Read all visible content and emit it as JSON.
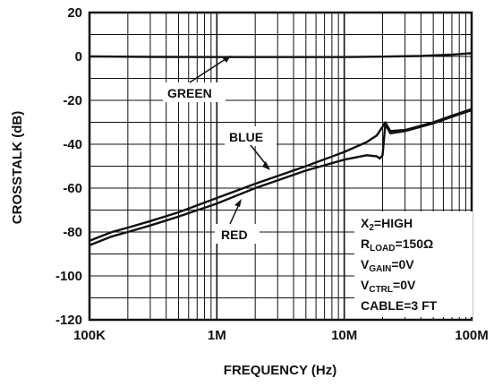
{
  "chart_data": {
    "type": "line",
    "xlabel": "FREQUENCY (Hz)",
    "ylabel": "CROSSTALK (dB)",
    "xscale": "log",
    "xlim": [
      100000,
      100000000
    ],
    "ylim": [
      -120,
      20
    ],
    "grid": true,
    "x_ticks": [
      {
        "value": 100000,
        "label": "100K"
      },
      {
        "value": 1000000,
        "label": "1M"
      },
      {
        "value": 10000000,
        "label": "10M"
      },
      {
        "value": 100000000,
        "label": "100M"
      }
    ],
    "y_ticks": [
      20,
      0,
      -20,
      -40,
      -60,
      -80,
      -100,
      -120
    ],
    "series": [
      {
        "name": "GREEN",
        "color": "#111111",
        "x": [
          100000,
          300000,
          1000000,
          3000000,
          10000000,
          20000000,
          40000000,
          70000000,
          100000000
        ],
        "y": [
          0,
          -0.2,
          -0.3,
          -0.3,
          -0.3,
          -0.1,
          0.2,
          0.8,
          1.5
        ]
      },
      {
        "name": "BLUE",
        "color": "#111111",
        "x": [
          100000,
          150000,
          200000,
          300000,
          500000,
          1000000,
          2000000,
          5000000,
          10000000,
          15000000,
          18000000,
          20000000,
          21000000,
          23000000,
          30000000,
          50000000,
          70000000,
          100000000
        ],
        "y": [
          -84,
          -80,
          -78,
          -75,
          -71,
          -64.5,
          -58,
          -50,
          -43.5,
          -39,
          -36,
          -32,
          -30,
          -34,
          -33.5,
          -30,
          -27,
          -24
        ]
      },
      {
        "name": "RED",
        "color": "#111111",
        "x": [
          100000,
          150000,
          200000,
          300000,
          500000,
          1000000,
          2000000,
          5000000,
          10000000,
          15000000,
          18000000,
          19000000,
          20000000,
          21000000,
          23000000,
          30000000,
          50000000,
          70000000,
          100000000
        ],
        "y": [
          -86,
          -82,
          -80,
          -77,
          -73,
          -67,
          -60,
          -52,
          -47,
          -45,
          -45.5,
          -46.5,
          -45,
          -31,
          -35,
          -34,
          -30.5,
          -27.5,
          -24.5
        ]
      }
    ],
    "annotations": {
      "green": "GREEN",
      "blue": "BLUE",
      "red": "RED"
    },
    "legend_box": {
      "line1_main": "X",
      "line1_sub": "2",
      "line1_rest": "=HIGH",
      "line2_main": "R",
      "line2_sub": "LOAD",
      "line2_rest": "=150Ω",
      "line3_main": "V",
      "line3_sub": "GAIN",
      "line3_rest": "=0V",
      "line4_main": "V",
      "line4_sub": "CTRL",
      "line4_rest": "=0V",
      "line5": "CABLE=3 FT"
    }
  }
}
